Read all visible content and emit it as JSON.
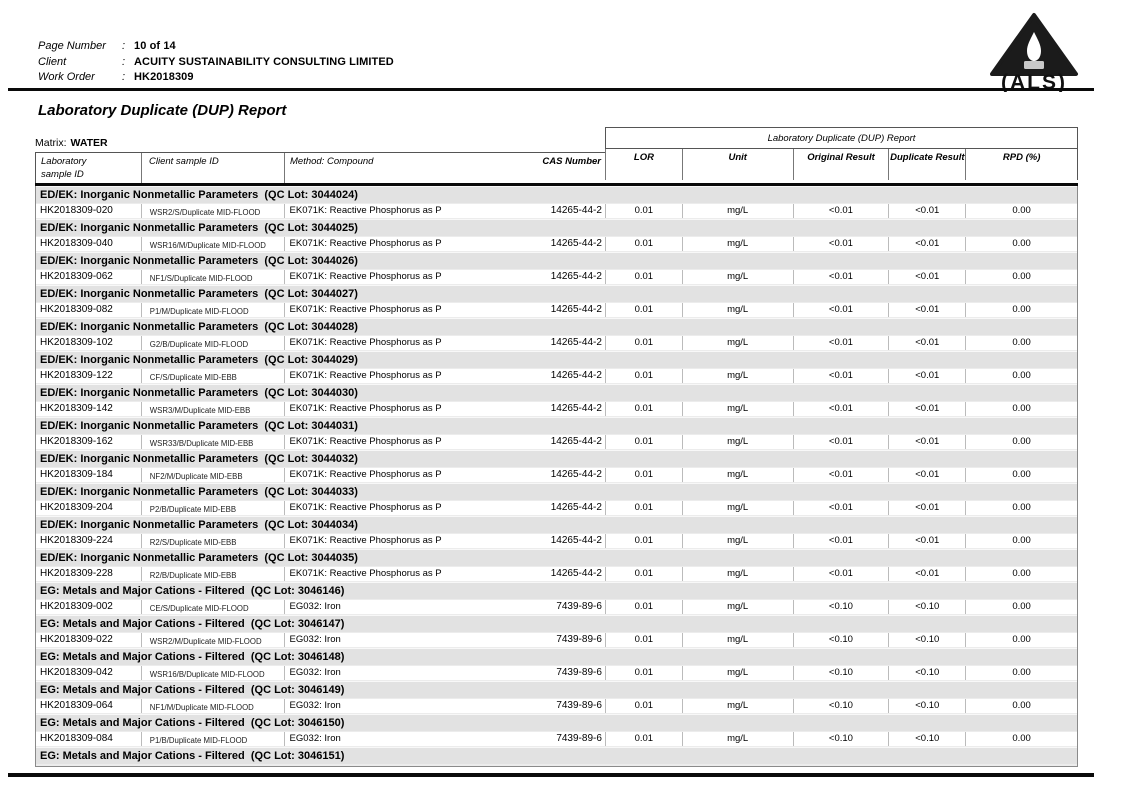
{
  "header": {
    "fields": [
      {
        "label": "Page Number",
        "sep": ":",
        "value": "10 of 14"
      },
      {
        "label": "Client",
        "sep": ":",
        "value": "ACUITY SUSTAINABILITY CONSULTING LIMITED"
      },
      {
        "label": "Work Order",
        "sep": ":",
        "value": "HK2018309"
      }
    ],
    "logo_text": "(ALS)"
  },
  "title": "Laboratory Duplicate (DUP) Report",
  "matrix": {
    "label": "Matrix:",
    "value": "WATER"
  },
  "table": {
    "span_header": "Laboratory Duplicate (DUP) Report",
    "columns": {
      "lab_line1": "Laboratory",
      "lab_line2": "sample ID",
      "client": "Client sample ID",
      "method": "Method: Compound",
      "cas": "CAS Number",
      "lor": "LOR",
      "unit": "Unit",
      "orig": "Original Result",
      "dup": "Duplicate Result",
      "rpd": "RPD (%)"
    },
    "sections": [
      {
        "name": "ED/EK: Inorganic Nonmetallic Parameters  (QC Lot: 3044024)",
        "rows": [
          [
            "HK2018309-020",
            "WSR2/S/Duplicate MID-FLOOD",
            "EK071K: Reactive Phosphorus as P",
            "14265-44-2",
            "0.01",
            "mg/L",
            "<0.01",
            "<0.01",
            "0.00"
          ]
        ]
      },
      {
        "name": "ED/EK: Inorganic Nonmetallic Parameters  (QC Lot: 3044025)",
        "rows": [
          [
            "HK2018309-040",
            "WSR16/M/Duplicate MID-FLOOD",
            "EK071K: Reactive Phosphorus as P",
            "14265-44-2",
            "0.01",
            "mg/L",
            "<0.01",
            "<0.01",
            "0.00"
          ]
        ]
      },
      {
        "name": "ED/EK: Inorganic Nonmetallic Parameters  (QC Lot: 3044026)",
        "rows": [
          [
            "HK2018309-062",
            "NF1/S/Duplicate MID-FLOOD",
            "EK071K: Reactive Phosphorus as P",
            "14265-44-2",
            "0.01",
            "mg/L",
            "<0.01",
            "<0.01",
            "0.00"
          ]
        ]
      },
      {
        "name": "ED/EK: Inorganic Nonmetallic Parameters  (QC Lot: 3044027)",
        "rows": [
          [
            "HK2018309-082",
            "P1/M/Duplicate MID-FLOOD",
            "EK071K: Reactive Phosphorus as P",
            "14265-44-2",
            "0.01",
            "mg/L",
            "<0.01",
            "<0.01",
            "0.00"
          ]
        ]
      },
      {
        "name": "ED/EK: Inorganic Nonmetallic Parameters  (QC Lot: 3044028)",
        "rows": [
          [
            "HK2018309-102",
            "G2/B/Duplicate MID-FLOOD",
            "EK071K: Reactive Phosphorus as P",
            "14265-44-2",
            "0.01",
            "mg/L",
            "<0.01",
            "<0.01",
            "0.00"
          ]
        ]
      },
      {
        "name": "ED/EK: Inorganic Nonmetallic Parameters  (QC Lot: 3044029)",
        "rows": [
          [
            "HK2018309-122",
            "CF/S/Duplicate MID-EBB",
            "EK071K: Reactive Phosphorus as P",
            "14265-44-2",
            "0.01",
            "mg/L",
            "<0.01",
            "<0.01",
            "0.00"
          ]
        ]
      },
      {
        "name": "ED/EK: Inorganic Nonmetallic Parameters  (QC Lot: 3044030)",
        "rows": [
          [
            "HK2018309-142",
            "WSR3/M/Duplicate MID-EBB",
            "EK071K: Reactive Phosphorus as P",
            "14265-44-2",
            "0.01",
            "mg/L",
            "<0.01",
            "<0.01",
            "0.00"
          ]
        ]
      },
      {
        "name": "ED/EK: Inorganic Nonmetallic Parameters  (QC Lot: 3044031)",
        "rows": [
          [
            "HK2018309-162",
            "WSR33/B/Duplicate MID-EBB",
            "EK071K: Reactive Phosphorus as P",
            "14265-44-2",
            "0.01",
            "mg/L",
            "<0.01",
            "<0.01",
            "0.00"
          ]
        ]
      },
      {
        "name": "ED/EK: Inorganic Nonmetallic Parameters  (QC Lot: 3044032)",
        "rows": [
          [
            "HK2018309-184",
            "NF2/M/Duplicate MID-EBB",
            "EK071K: Reactive Phosphorus as P",
            "14265-44-2",
            "0.01",
            "mg/L",
            "<0.01",
            "<0.01",
            "0.00"
          ]
        ]
      },
      {
        "name": "ED/EK: Inorganic Nonmetallic Parameters  (QC Lot: 3044033)",
        "rows": [
          [
            "HK2018309-204",
            "P2/B/Duplicate MID-EBB",
            "EK071K: Reactive Phosphorus as P",
            "14265-44-2",
            "0.01",
            "mg/L",
            "<0.01",
            "<0.01",
            "0.00"
          ]
        ]
      },
      {
        "name": "ED/EK: Inorganic Nonmetallic Parameters  (QC Lot: 3044034)",
        "rows": [
          [
            "HK2018309-224",
            "R2/S/Duplicate MID-EBB",
            "EK071K: Reactive Phosphorus as P",
            "14265-44-2",
            "0.01",
            "mg/L",
            "<0.01",
            "<0.01",
            "0.00"
          ]
        ]
      },
      {
        "name": "ED/EK: Inorganic Nonmetallic Parameters  (QC Lot: 3044035)",
        "rows": [
          [
            "HK2018309-228",
            "R2/B/Duplicate MID-EBB",
            "EK071K: Reactive Phosphorus as P",
            "14265-44-2",
            "0.01",
            "mg/L",
            "<0.01",
            "<0.01",
            "0.00"
          ]
        ]
      },
      {
        "name": "EG: Metals and Major Cations - Filtered  (QC Lot: 3046146)",
        "rows": [
          [
            "HK2018309-002",
            "CE/S/Duplicate MID-FLOOD",
            "EG032: Iron",
            "7439-89-6",
            "0.01",
            "mg/L",
            "<0.10",
            "<0.10",
            "0.00"
          ]
        ]
      },
      {
        "name": "EG: Metals and Major Cations - Filtered  (QC Lot: 3046147)",
        "rows": [
          [
            "HK2018309-022",
            "WSR2/M/Duplicate MID-FLOOD",
            "EG032: Iron",
            "7439-89-6",
            "0.01",
            "mg/L",
            "<0.10",
            "<0.10",
            "0.00"
          ]
        ]
      },
      {
        "name": "EG: Metals and Major Cations - Filtered  (QC Lot: 3046148)",
        "rows": [
          [
            "HK2018309-042",
            "WSR16/B/Duplicate MID-FLOOD",
            "EG032: Iron",
            "7439-89-6",
            "0.01",
            "mg/L",
            "<0.10",
            "<0.10",
            "0.00"
          ]
        ]
      },
      {
        "name": "EG: Metals and Major Cations - Filtered  (QC Lot: 3046149)",
        "rows": [
          [
            "HK2018309-064",
            "NF1/M/Duplicate MID-FLOOD",
            "EG032: Iron",
            "7439-89-6",
            "0.01",
            "mg/L",
            "<0.10",
            "<0.10",
            "0.00"
          ]
        ]
      },
      {
        "name": "EG: Metals and Major Cations - Filtered  (QC Lot: 3046150)",
        "rows": [
          [
            "HK2018309-084",
            "P1/B/Duplicate MID-FLOOD",
            "EG032: Iron",
            "7439-89-6",
            "0.01",
            "mg/L",
            "<0.10",
            "<0.10",
            "0.00"
          ]
        ]
      },
      {
        "name": "EG: Metals and Major Cations - Filtered  (QC Lot: 3046151)",
        "rows": []
      }
    ]
  },
  "colors": {
    "section_bg": "#e2e2e2",
    "rule": "#0a0a0a",
    "page_bg": "#ffffff"
  }
}
